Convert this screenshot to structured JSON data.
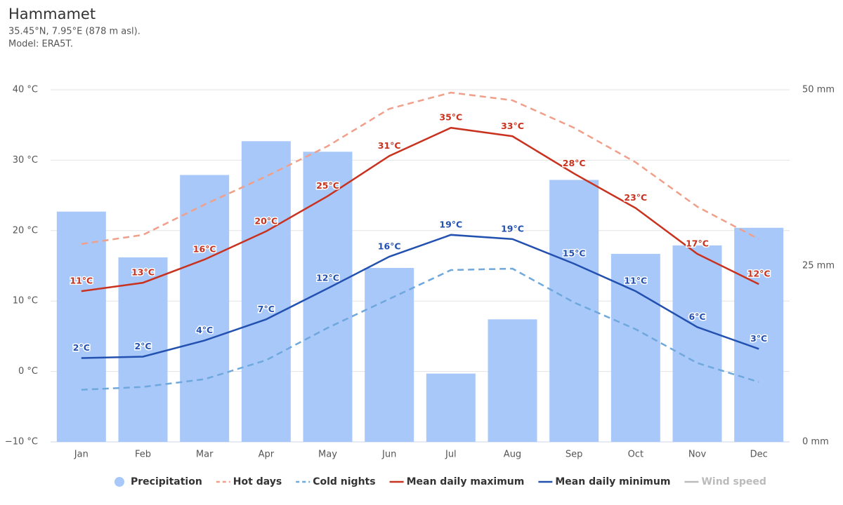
{
  "chart_data": {
    "type": "bar",
    "title": "Hammamet",
    "subtitle": [
      "35.45°N, 7.95°E (878 m asl).",
      "Model: ERA5T."
    ],
    "categories": [
      "Jan",
      "Feb",
      "Mar",
      "Apr",
      "May",
      "Jun",
      "Jul",
      "Aug",
      "Sep",
      "Oct",
      "Nov",
      "Dec"
    ],
    "ylim": [
      -10,
      40
    ],
    "yticks": [
      {
        "value": -10,
        "label": "−10 °C"
      },
      {
        "value": 0,
        "label": "0 °C"
      },
      {
        "value": 10,
        "label": "10 °C"
      },
      {
        "value": 20,
        "label": "20 °C"
      },
      {
        "value": 30,
        "label": "30 °C"
      },
      {
        "value": 40,
        "label": "40 °C"
      }
    ],
    "y2lim": [
      0,
      50
    ],
    "y2ticks": [
      {
        "value": 0,
        "label": "0 mm"
      },
      {
        "value": 25,
        "label": "25 mm"
      },
      {
        "value": 50,
        "label": "50 mm"
      }
    ],
    "grid": true,
    "legend": "bottom",
    "series": [
      {
        "name": "Precipitation",
        "type": "bar",
        "axis": "y2",
        "color": "#a8c8fa",
        "values": [
          32.7,
          26.2,
          37.9,
          42.7,
          41.2,
          24.7,
          9.7,
          17.4,
          37.2,
          26.7,
          27.9,
          30.4
        ]
      },
      {
        "name": "Hot days",
        "type": "line",
        "dashed": true,
        "color": "#f0a08a",
        "values": [
          18.1,
          19.4,
          23.7,
          27.7,
          32.0,
          37.3,
          39.6,
          38.5,
          34.6,
          29.7,
          23.4,
          18.8
        ]
      },
      {
        "name": "Cold nights",
        "type": "line",
        "dashed": true,
        "color": "#6fa8dc",
        "values": [
          -2.6,
          -2.2,
          -1.1,
          1.6,
          6.2,
          10.3,
          14.4,
          14.6,
          9.8,
          6.0,
          1.2,
          -1.5
        ]
      },
      {
        "name": "Mean daily maximum",
        "type": "line",
        "color": "#c8321e",
        "values": [
          11.4,
          12.6,
          15.9,
          19.9,
          24.9,
          30.6,
          34.6,
          33.4,
          28.1,
          23.2,
          16.7,
          12.4
        ],
        "value_labels": [
          "11°C",
          "13°C",
          "16°C",
          "20°C",
          "25°C",
          "31°C",
          "35°C",
          "33°C",
          "28°C",
          "23°C",
          "17°C",
          "12°C"
        ]
      },
      {
        "name": "Mean daily minimum",
        "type": "line",
        "color": "#2351b0",
        "values": [
          1.9,
          2.1,
          4.4,
          7.4,
          11.8,
          16.3,
          19.4,
          18.8,
          15.3,
          11.4,
          6.3,
          3.2
        ],
        "value_labels": [
          "2°C",
          "2°C",
          "4°C",
          "7°C",
          "12°C",
          "16°C",
          "19°C",
          "19°C",
          "15°C",
          "11°C",
          "6°C",
          "3°C"
        ]
      },
      {
        "name": "Wind speed",
        "type": "line",
        "hidden": true,
        "color": "#999999",
        "values": [
          null,
          null,
          null,
          null,
          null,
          null,
          null,
          null,
          null,
          null,
          null,
          null
        ]
      }
    ]
  }
}
